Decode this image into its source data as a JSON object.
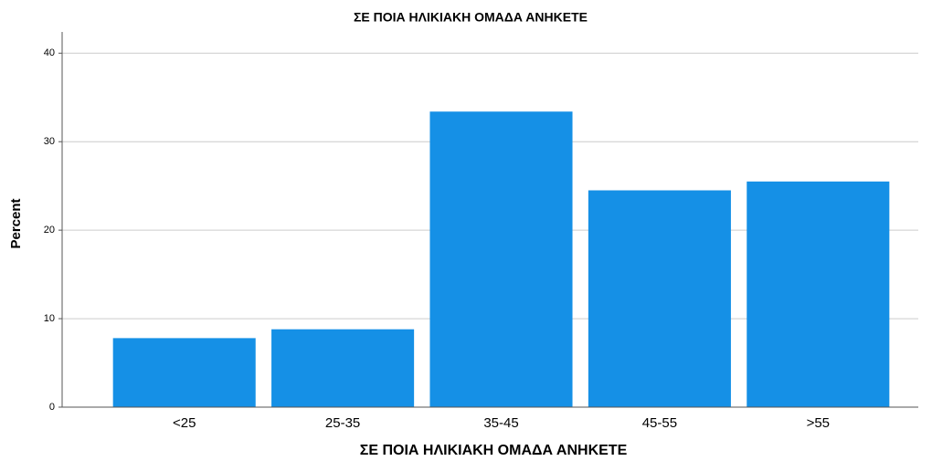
{
  "chart_data": {
    "type": "bar",
    "title": "ΣΕ ΠΟΙΑ ΗΛΙΚΙΑΚΗ ΟΜΑΔΑ ΑΝΗΚΕΤΕ",
    "x_label": "ΣΕ ΠΟΙΑ ΗΛΙΚΙΑΚΗ ΟΜΑΔΑ ΑΝΗΚΕΤΕ",
    "y_label": "Percent",
    "categories": [
      "<25",
      "25-35",
      "35-45",
      "45-55",
      ">55"
    ],
    "values": [
      7.8,
      8.8,
      33.4,
      24.5,
      25.5
    ],
    "color": "#1590e6",
    "ylim": [
      0,
      42.4
    ],
    "yticks": [
      0,
      10,
      20,
      30,
      40
    ],
    "grid": true
  }
}
